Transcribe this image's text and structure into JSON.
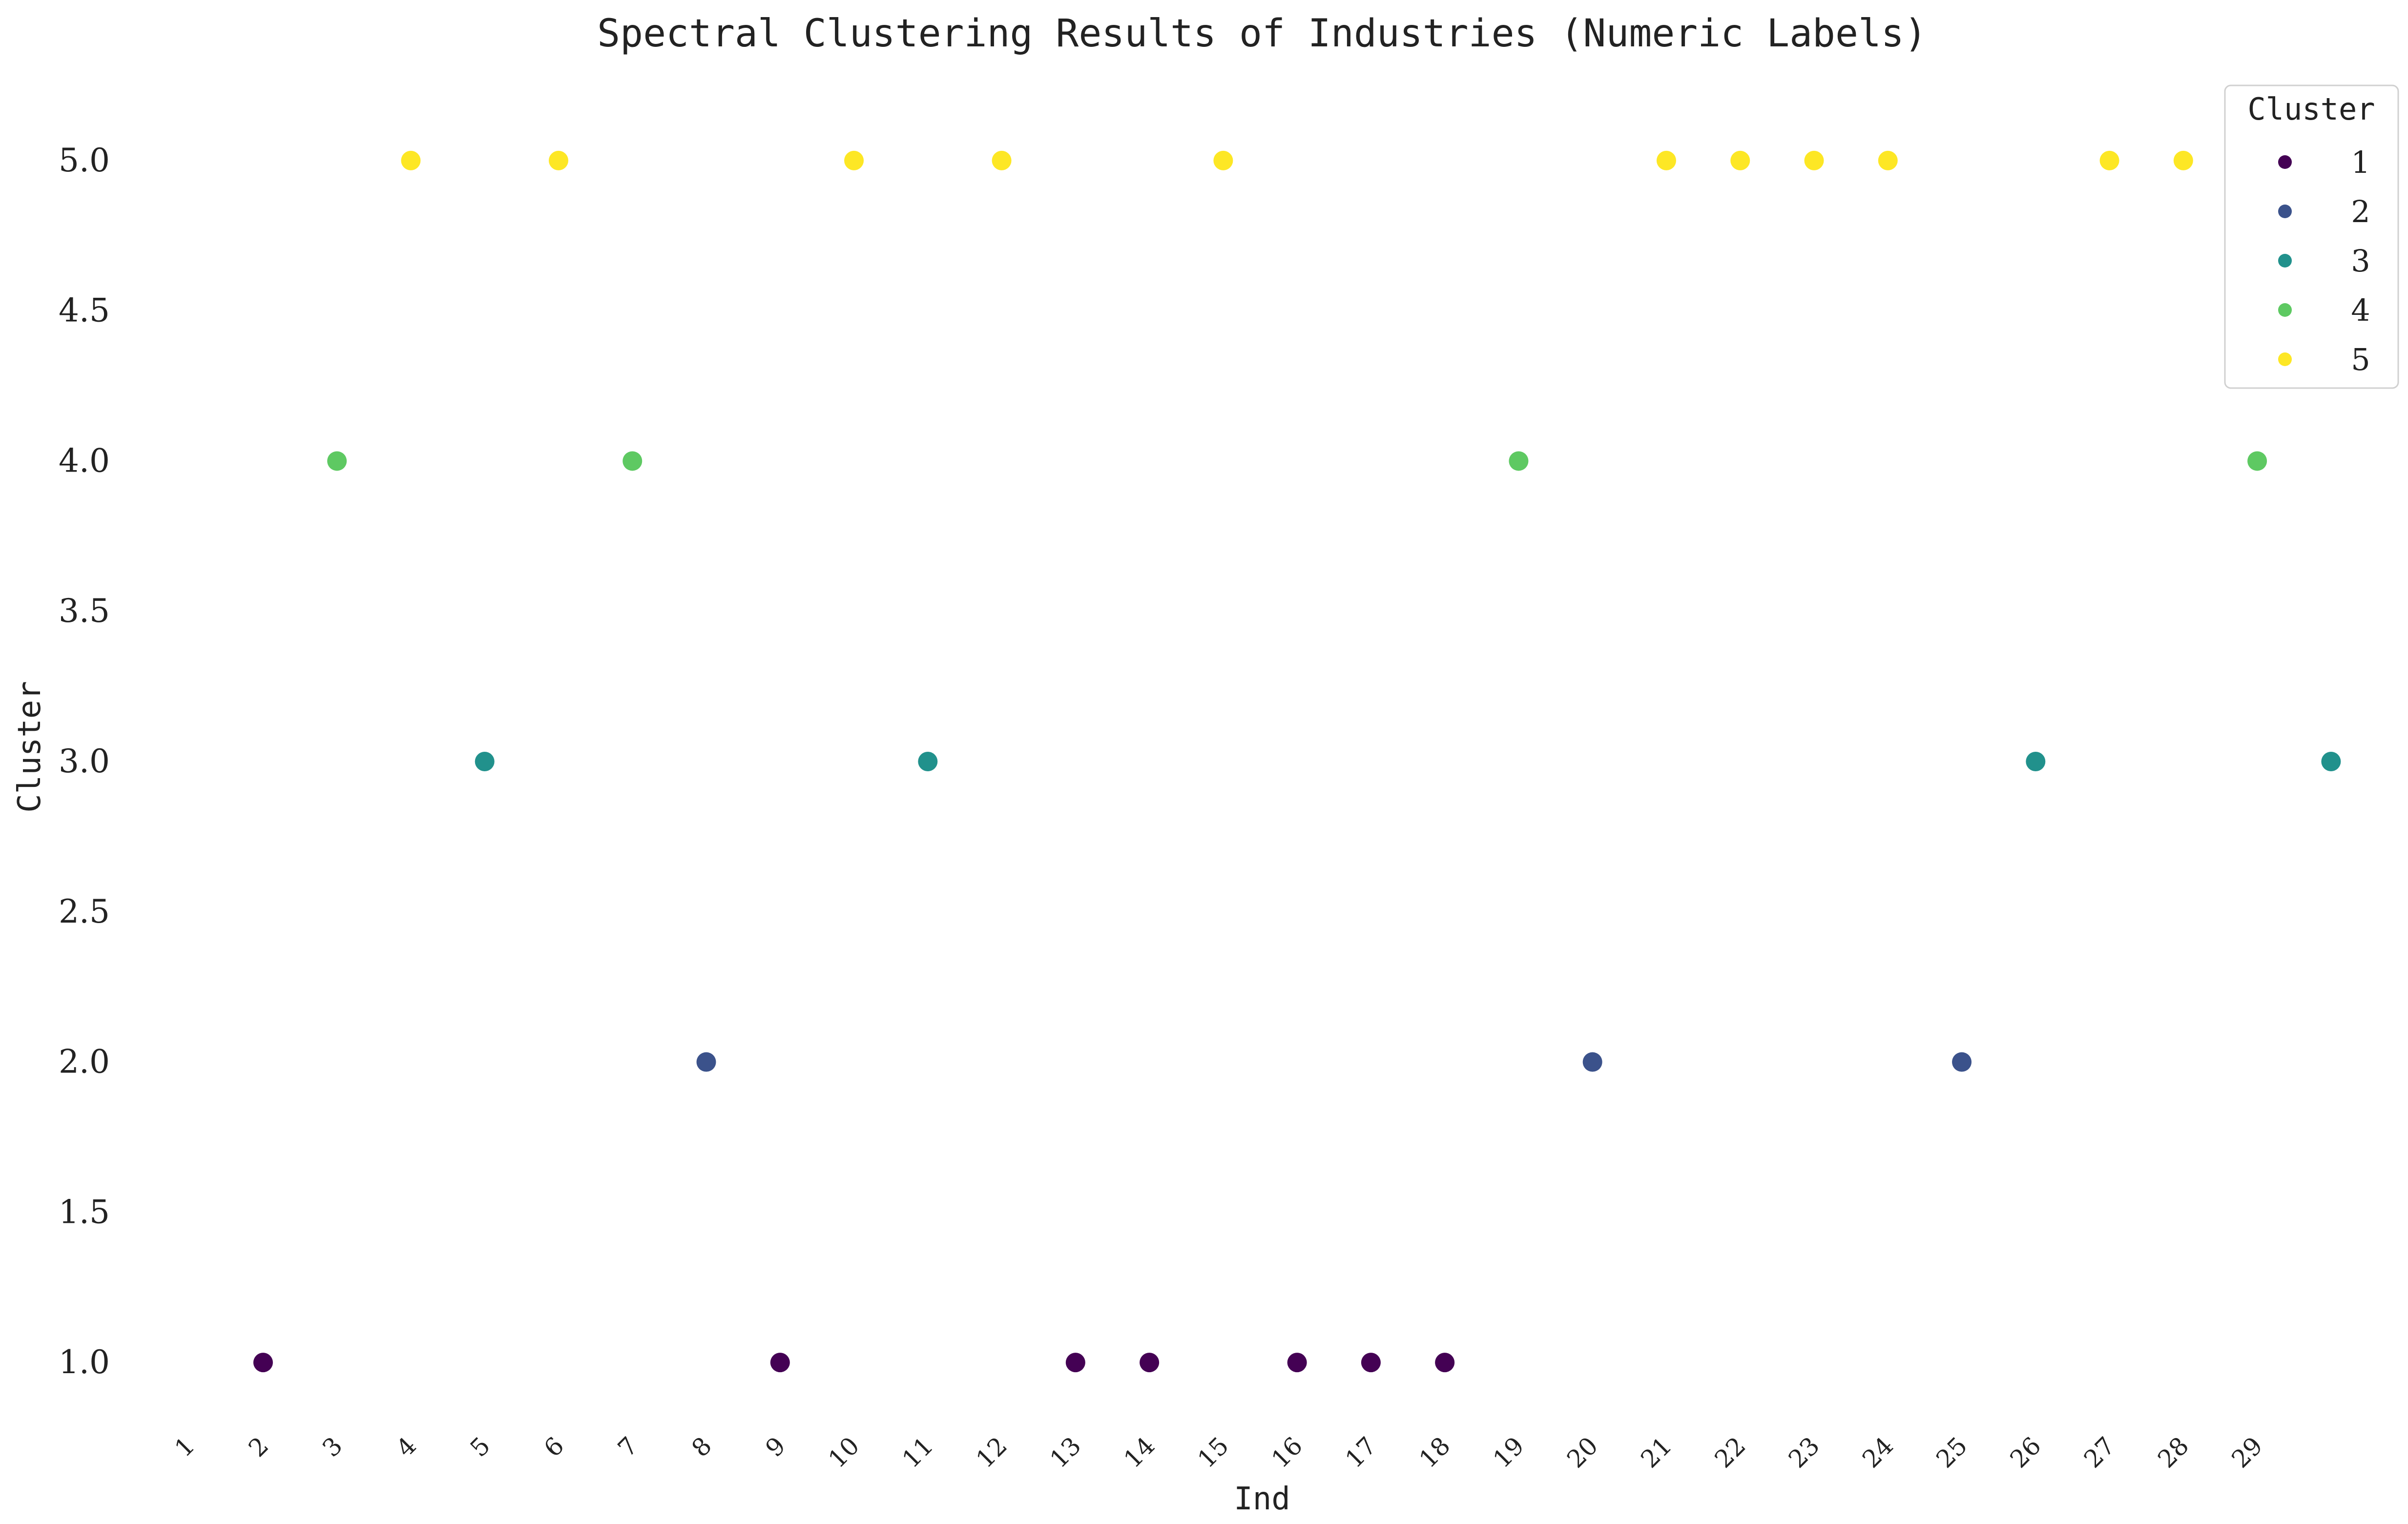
{
  "chart_data": {
    "type": "scatter",
    "title": "Spectral Clustering Results of Industries (Numeric Labels)",
    "xlabel": "Ind",
    "ylabel": "Cluster",
    "xlim": [
      0.5,
      30.5
    ],
    "ylim": [
      0.75,
      5.25
    ],
    "x_ticks": [
      "1",
      "2",
      "3",
      "4",
      "5",
      "6",
      "7",
      "8",
      "9",
      "10",
      "11",
      "12",
      "13",
      "14",
      "15",
      "16",
      "17",
      "18",
      "19",
      "20",
      "21",
      "22",
      "23",
      "24",
      "25",
      "26",
      "27",
      "28",
      "29"
    ],
    "y_ticks": [
      "1.0",
      "1.5",
      "2.0",
      "2.5",
      "3.0",
      "3.5",
      "4.0",
      "4.5",
      "5.0"
    ],
    "grid": false,
    "legend": {
      "title": "Cluster",
      "placement": "top-right",
      "entries": [
        {
          "label": "1",
          "color": "#440154"
        },
        {
          "label": "2",
          "color": "#3b528b"
        },
        {
          "label": "3",
          "color": "#21918c"
        },
        {
          "label": "4",
          "color": "#5ec962"
        },
        {
          "label": "5",
          "color": "#fde725"
        }
      ]
    },
    "points": [
      {
        "x": 2,
        "y": 1
      },
      {
        "x": 3,
        "y": 4
      },
      {
        "x": 4,
        "y": 5
      },
      {
        "x": 5,
        "y": 3
      },
      {
        "x": 6,
        "y": 5
      },
      {
        "x": 7,
        "y": 4
      },
      {
        "x": 8,
        "y": 2
      },
      {
        "x": 9,
        "y": 1
      },
      {
        "x": 10,
        "y": 5
      },
      {
        "x": 11,
        "y": 3
      },
      {
        "x": 12,
        "y": 5
      },
      {
        "x": 13,
        "y": 1
      },
      {
        "x": 14,
        "y": 1
      },
      {
        "x": 15,
        "y": 5
      },
      {
        "x": 16,
        "y": 1
      },
      {
        "x": 17,
        "y": 1
      },
      {
        "x": 18,
        "y": 1
      },
      {
        "x": 19,
        "y": 4
      },
      {
        "x": 20,
        "y": 2
      },
      {
        "x": 21,
        "y": 5
      },
      {
        "x": 22,
        "y": 5
      },
      {
        "x": 23,
        "y": 5
      },
      {
        "x": 24,
        "y": 5
      },
      {
        "x": 25,
        "y": 2
      },
      {
        "x": 26,
        "y": 3
      },
      {
        "x": 27,
        "y": 5
      },
      {
        "x": 28,
        "y": 5
      },
      {
        "x": 29,
        "y": 4
      },
      {
        "x": 30,
        "y": 3
      }
    ]
  }
}
